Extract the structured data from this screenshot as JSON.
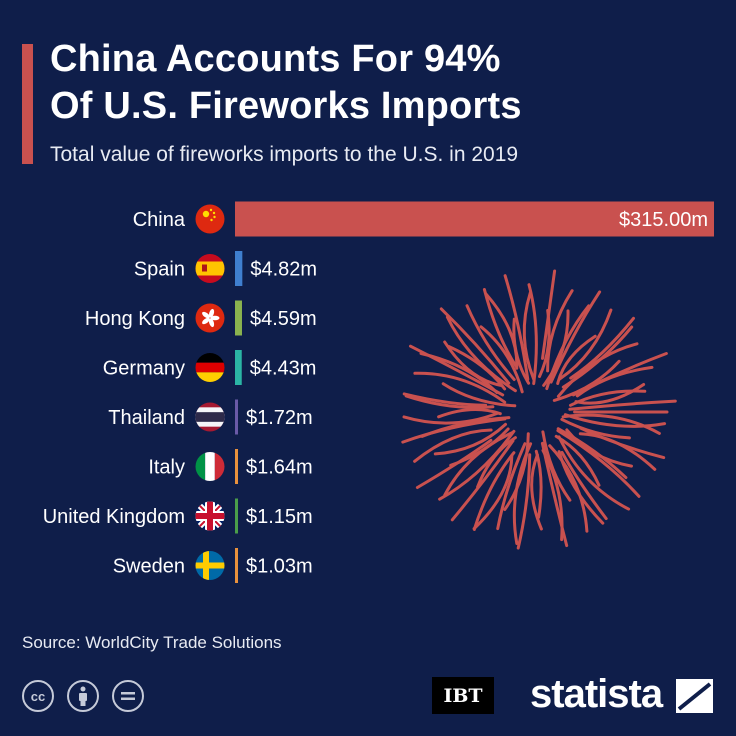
{
  "header": {
    "title_line1": "China Accounts For 94%",
    "title_line2": "Of U.S. Fireworks Imports",
    "subtitle": "Total value of fireworks imports to the U.S. in 2019"
  },
  "footer": {
    "source": "Source: WorldCity Trade Solutions",
    "license_icons": [
      "cc-icon",
      "attribution-icon",
      "no-derivatives-icon"
    ],
    "publisher": "IBT",
    "brand": "statista"
  },
  "colors": {
    "background": "#0f1e4a",
    "accent": "#c9514f",
    "firework": "#c9514f",
    "bars": [
      "#c9514f",
      "#3f7fcf",
      "#8ab34f",
      "#2bb5a5",
      "#6a5aa8",
      "#e8913d",
      "#4a9e4a",
      "#e8913d"
    ]
  },
  "chart_data": {
    "type": "bar",
    "orientation": "horizontal",
    "title": "China Accounts For 94% Of U.S. Fireworks Imports",
    "subtitle": "Total value of fireworks imports to the U.S. in 2019",
    "categories": [
      "China",
      "Spain",
      "Hong Kong",
      "Germany",
      "Thailand",
      "Italy",
      "United Kingdom",
      "Sweden"
    ],
    "values": [
      315.0,
      4.82,
      4.59,
      4.43,
      1.72,
      1.64,
      1.15,
      1.03
    ],
    "labels": [
      "$315.00m",
      "$4.82m",
      "$4.59m",
      "$4.43m",
      "$1.72m",
      "$1.64m",
      "$1.15m",
      "$1.03m"
    ],
    "flag_icons": [
      "china-flag-icon",
      "spain-flag-icon",
      "hong-kong-flag-icon",
      "germany-flag-icon",
      "thailand-flag-icon",
      "italy-flag-icon",
      "united-kingdom-flag-icon",
      "sweden-flag-icon"
    ],
    "unit": "million USD",
    "grid": false,
    "legend": "none"
  }
}
